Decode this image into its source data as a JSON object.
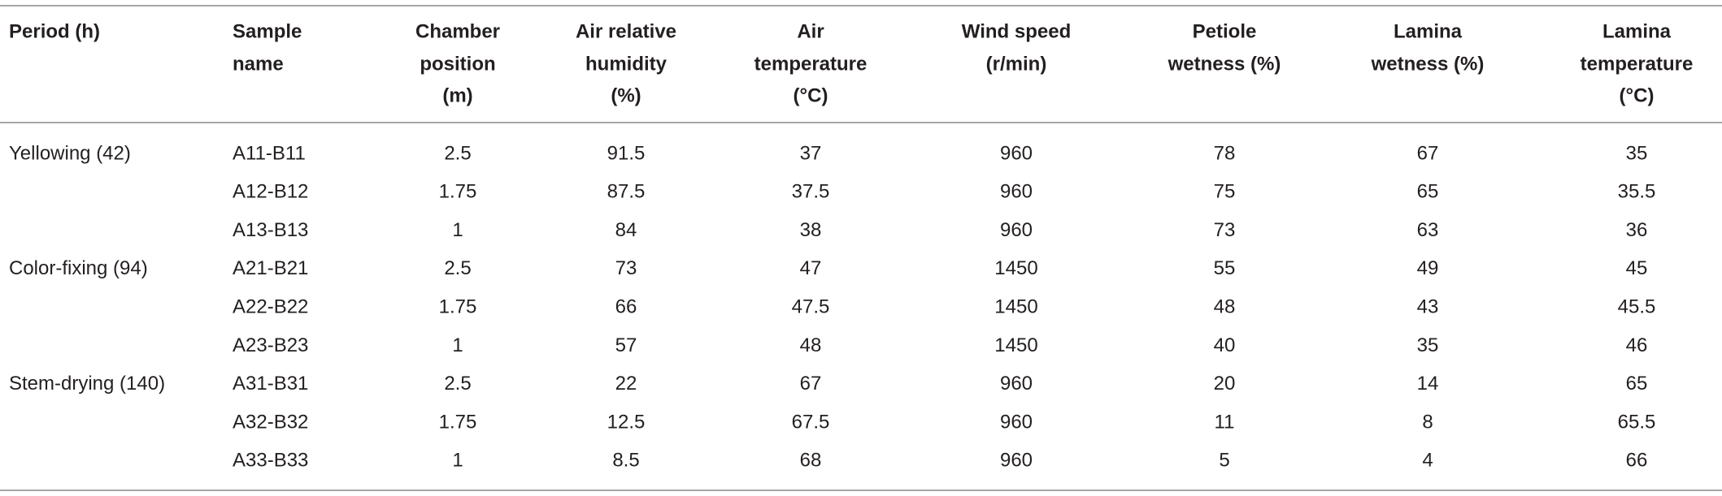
{
  "table": {
    "headers": [
      [
        "Period (h)"
      ],
      [
        "Sample",
        "name"
      ],
      [
        "Chamber",
        "position",
        "(m)"
      ],
      [
        "Air relative",
        "humidity",
        "(%)"
      ],
      [
        "Air",
        "temperature",
        "(°C)"
      ],
      [
        "Wind speed",
        "(r/min)"
      ],
      [
        "Petiole",
        "wetness (%)"
      ],
      [
        "Lamina",
        "wetness (%)"
      ],
      [
        "Lamina",
        "temperature",
        "(°C)"
      ]
    ],
    "groups": [
      {
        "period": "Yellowing (42)",
        "rows": [
          [
            "A11-B11",
            2.5,
            91.5,
            37,
            960,
            78,
            67,
            35
          ],
          [
            "A12-B12",
            1.75,
            87.5,
            37.5,
            960,
            75,
            65,
            35.5
          ],
          [
            "A13-B13",
            1,
            84,
            38,
            960,
            73,
            63,
            36
          ]
        ]
      },
      {
        "period": "Color-fixing (94)",
        "rows": [
          [
            "A21-B21",
            2.5,
            73,
            47,
            1450,
            55,
            49,
            45
          ],
          [
            "A22-B22",
            1.75,
            66,
            47.5,
            1450,
            48,
            43,
            45.5
          ],
          [
            "A23-B23",
            1,
            57,
            48,
            1450,
            40,
            35,
            46
          ]
        ]
      },
      {
        "period": "Stem-drying (140)",
        "rows": [
          [
            "A31-B31",
            2.5,
            22,
            67,
            960,
            20,
            14,
            65
          ],
          [
            "A32-B32",
            1.75,
            12.5,
            67.5,
            960,
            11,
            8,
            65.5
          ],
          [
            "A33-B33",
            1,
            8.5,
            68,
            960,
            5,
            4,
            66
          ]
        ]
      }
    ]
  }
}
